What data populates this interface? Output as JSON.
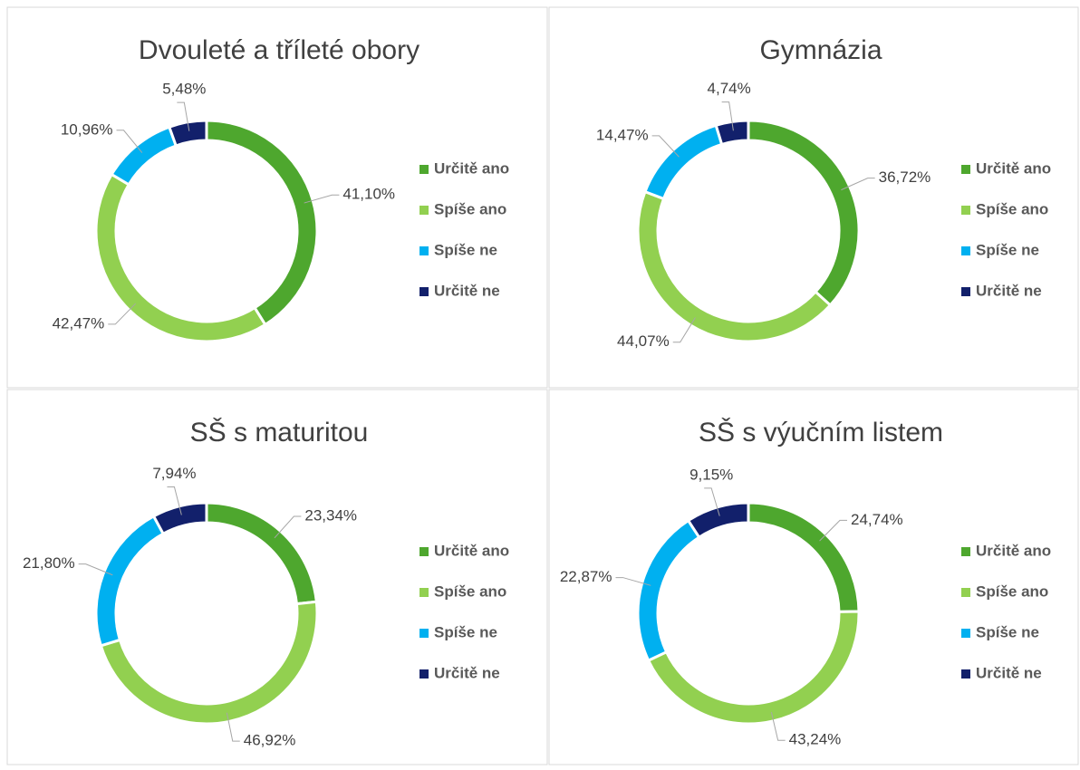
{
  "chart_data": [
    {
      "type": "donut",
      "title": "Dvouleté a tříleté obory",
      "categories": [
        "Určitě ano",
        "Spíše ano",
        "Spíše ne",
        "Určitě ne"
      ],
      "values": [
        41.1,
        42.47,
        10.96,
        5.48
      ],
      "value_labels": [
        "41,10%",
        "42,47%",
        "10,96%",
        "5,48%"
      ],
      "colors": [
        "#4ea72e",
        "#92d050",
        "#00b0f0",
        "#12206b"
      ]
    },
    {
      "type": "donut",
      "title": "Gymnázia",
      "categories": [
        "Určitě ano",
        "Spíše ano",
        "Spíše ne",
        "Určitě ne"
      ],
      "values": [
        36.72,
        44.07,
        14.47,
        4.74
      ],
      "value_labels": [
        "36,72%",
        "44,07%",
        "14,47%",
        "4,74%"
      ],
      "colors": [
        "#4ea72e",
        "#92d050",
        "#00b0f0",
        "#12206b"
      ]
    },
    {
      "type": "donut",
      "title": "SŠ s maturitou",
      "categories": [
        "Určitě ano",
        "Spíše ano",
        "Spíše ne",
        "Určitě ne"
      ],
      "values": [
        23.34,
        46.92,
        21.8,
        7.94
      ],
      "value_labels": [
        "23,34%",
        "46,92%",
        "21,80%",
        "7,94%"
      ],
      "colors": [
        "#4ea72e",
        "#92d050",
        "#00b0f0",
        "#12206b"
      ]
    },
    {
      "type": "donut",
      "title": "SŠ s výučním listem",
      "categories": [
        "Určitě ano",
        "Spíše ano",
        "Spíše ne",
        "Určitě ne"
      ],
      "values": [
        24.74,
        43.24,
        22.87,
        9.15
      ],
      "value_labels": [
        "24,74%",
        "43,24%",
        "22,87%",
        "9,15%"
      ],
      "colors": [
        "#4ea72e",
        "#92d050",
        "#00b0f0",
        "#12206b"
      ]
    }
  ]
}
